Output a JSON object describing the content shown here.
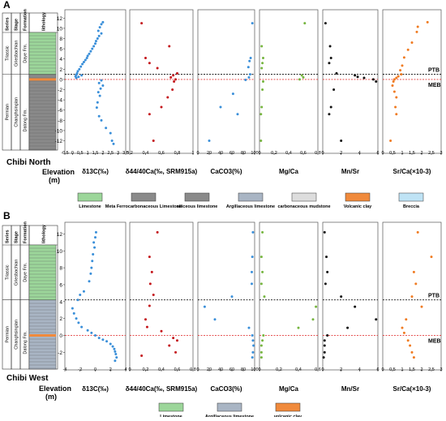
{
  "colors": {
    "blue": "#3a8fd9",
    "red": "#c4171c",
    "green": "#76b53f",
    "black": "#111111",
    "orange": "#f07b22",
    "limestone": "#9cd69a",
    "grey": "#8a8a8a",
    "argillaceous": "#a9b5c4",
    "volcanic": "#f08a3c",
    "breccia": "#bfe3f5",
    "dot_line": "#111111",
    "red_line": "#e33b3b"
  },
  "panels": [
    {
      "label": "A",
      "site": "Chibi North",
      "strat_headers": [
        "Series",
        "Stage",
        "Formation",
        "lithology"
      ],
      "series": [
        "Triassic",
        "Permian"
      ],
      "stages": [
        "Griesbachian",
        "Changhsingian"
      ],
      "formations": [
        "Daye Fm.",
        "Dalong Fm."
      ],
      "yticks": [
        "12",
        "10",
        "8",
        "6",
        "4",
        "2",
        "0",
        "-2",
        "-4",
        "-6",
        "-8",
        "-10",
        "-12"
      ],
      "elevation_label": "Elevation",
      "elevation_unit": "(m)",
      "ptb": "PTB",
      "meb": "MEB",
      "axes": [
        {
          "xlabel": "δ13C(‰)",
          "ticks": [
            "-0.5",
            "0",
            "0.5",
            "1",
            "1.5",
            "2",
            "2.5",
            "3",
            "3.5"
          ]
        },
        {
          "xlabel": "δ44/40Ca(‰, SRM915a)",
          "ticks": [
            "0.2",
            "0.4",
            "0.6",
            "0.8",
            "1"
          ]
        },
        {
          "xlabel": "CaCO3(%)",
          "ticks": [
            "0",
            "20",
            "40",
            "60",
            "80",
            "100"
          ]
        },
        {
          "xlabel": "Mg/Ca",
          "ticks": [
            "0",
            "0.2",
            "0.4",
            "0.6",
            "0.8"
          ]
        },
        {
          "xlabel": "Mn/Sr",
          "ticks": [
            "0",
            "2",
            "4",
            "6"
          ]
        },
        {
          "xlabel": "Sr/Ca(×10-3)",
          "ticks": [
            "0",
            "0.5",
            "1",
            "1.5",
            "2",
            "2.5",
            "3"
          ]
        }
      ],
      "legend": [
        "Limestone",
        "Meta Ferrocarbonaceous Limestone",
        "siliceous limestone",
        "Argillaceous limestone",
        "carbonaceous mudstone",
        "Volcanic clay",
        "Breccia"
      ]
    },
    {
      "label": "B",
      "site": "Chibi West",
      "strat_headers": [
        "Series",
        "Stage",
        "Formation",
        "lithology"
      ],
      "series": [
        "Triassic",
        "Permian"
      ],
      "stages": [
        "Griesbachian",
        "Changhsingian"
      ],
      "formations": [
        "Daye Fm.",
        "Dalong Fm."
      ],
      "yticks": [
        "12",
        "10",
        "8",
        "6",
        "4",
        "2",
        "0",
        "-2"
      ],
      "elevation_label": "Elevation",
      "elevation_unit": "(m)",
      "ptb": "PTB",
      "meb": "MEB",
      "axes": [
        {
          "xlabel": "δ13C(‰)",
          "ticks": [
            "-4",
            "-2",
            "0",
            "2",
            "4"
          ]
        },
        {
          "xlabel": "δ44/40Ca(‰, SRM915a)",
          "ticks": [
            "0",
            "0.2",
            "0.4",
            "0.6",
            "0.8"
          ]
        },
        {
          "xlabel": "CaCO3(%)",
          "ticks": [
            "0",
            "20",
            "40",
            "60",
            "80",
            "100"
          ]
        },
        {
          "xlabel": "Mg/Ca",
          "ticks": [
            "0",
            "0.2",
            "0.4",
            "0.6"
          ]
        },
        {
          "xlabel": "Mn/Sr",
          "ticks": [
            "0",
            "2",
            "4",
            "6"
          ]
        },
        {
          "xlabel": "Sr/Ca(×10-3)",
          "ticks": [
            "0",
            "0.5",
            "1",
            "1.5",
            "2",
            "2.5",
            "3"
          ]
        }
      ],
      "legend": [
        "Limestone",
        "Argillaceous limestone",
        "volcanic clay"
      ]
    }
  ],
  "chart_data": [
    {
      "type": "scatter",
      "title": "",
      "ylabel": "Elevation (m)",
      "ylim": [
        -13.5,
        13
      ],
      "ptb": 1.0,
      "meb": 0.0,
      "series": [
        {
          "name": "δ13C(‰)",
          "xlim": [
            -0.5,
            3.5
          ],
          "color": "blue",
          "x": [
            2.0,
            1.9,
            1.8,
            1.7,
            1.9,
            1.75,
            1.65,
            1.55,
            1.5,
            1.4,
            1.3,
            1.2,
            1.1,
            1.0,
            0.95,
            0.85,
            0.75,
            0.65,
            0.55,
            0.45,
            0.35,
            0.3,
            0.25,
            0.2,
            0.25,
            0.4,
            0.6,
            1.9,
            1.75,
            2.0,
            1.85,
            1.7,
            1.8,
            1.65,
            1.6,
            1.75,
            1.9,
            2.2,
            2.5,
            2.6,
            2.7
          ],
          "y": [
            11.2,
            10.8,
            10.2,
            9.5,
            9.0,
            8.5,
            8.0,
            7.5,
            7.0,
            6.5,
            6.0,
            5.5,
            5.0,
            4.6,
            4.2,
            3.8,
            3.4,
            3.0,
            2.5,
            2.0,
            1.6,
            1.2,
            0.9,
            0.6,
            0.3,
            0.5,
            0.8,
            -0.2,
            -0.7,
            -1.2,
            -1.8,
            -2.5,
            -3.2,
            -4.5,
            -5.5,
            -7.2,
            -8.0,
            -9.5,
            -10.5,
            -12.0,
            -12.6
          ]
        },
        {
          "name": "δ44/40Ca",
          "xlim": [
            0.2,
            1.0
          ],
          "color": "red",
          "x": [
            0.35,
            0.7,
            0.4,
            0.45,
            0.55,
            0.8,
            0.75,
            0.72,
            0.78,
            0.76,
            0.74,
            0.68,
            0.6,
            0.45,
            0.5
          ],
          "y": [
            11.0,
            6.5,
            4.2,
            3.2,
            2.2,
            1.2,
            0.8,
            0.4,
            0.0,
            -0.4,
            -2.0,
            -3.5,
            -5.4,
            -6.8,
            -12.0
          ]
        },
        {
          "name": "CaCO3(%)",
          "xlim": [
            0,
            100
          ],
          "color": "blue",
          "x": [
            96,
            93,
            91,
            89,
            92,
            90,
            84,
            62,
            40,
            70,
            20
          ],
          "y": [
            11.0,
            4.2,
            3.6,
            2.4,
            1.0,
            0.4,
            -0.1,
            -2.8,
            -5.4,
            -6.8,
            -12.0
          ]
        },
        {
          "name": "Mg/Ca",
          "xlim": [
            0,
            0.8
          ],
          "color": "green",
          "x": [
            0.62,
            0.03,
            0.05,
            0.04,
            0.03,
            0.58,
            0.6,
            0.55,
            0.05,
            0.04,
            0.03,
            0.02,
            0.02
          ],
          "y": [
            11.0,
            6.5,
            4.2,
            3.2,
            2.2,
            0.8,
            0.4,
            0.0,
            -0.4,
            -2.0,
            -5.4,
            -6.8,
            -12.0
          ]
        },
        {
          "name": "Mn/Sr",
          "xlim": [
            0,
            6
          ],
          "color": "black",
          "x": [
            0.3,
            0.8,
            0.9,
            0.7,
            1.5,
            3.5,
            3.8,
            4.5,
            5.5,
            5.8,
            1.2,
            0.9,
            0.7,
            2.0
          ],
          "y": [
            11.0,
            6.5,
            4.2,
            3.2,
            1.2,
            0.8,
            0.5,
            0.3,
            0.0,
            -0.4,
            -2.0,
            -5.4,
            -6.8,
            -12.0
          ]
        },
        {
          "name": "Sr/Ca(×10-3)",
          "xlim": [
            0,
            3
          ],
          "color": "orange",
          "x": [
            2.3,
            1.8,
            1.75,
            1.5,
            1.3,
            1.1,
            1.0,
            0.9,
            0.95,
            0.8,
            0.7,
            0.6,
            0.55,
            0.5,
            0.6,
            0.7,
            0.65,
            0.7,
            0.4
          ],
          "y": [
            11.2,
            10.3,
            9.3,
            7.2,
            5.8,
            4.3,
            2.7,
            1.8,
            1.0,
            0.6,
            0.3,
            0.0,
            -0.4,
            -1.2,
            -2.4,
            -3.5,
            -5.4,
            -6.8,
            -12.0
          ]
        }
      ]
    },
    {
      "type": "scatter",
      "title": "",
      "ylabel": "Elevation (m)",
      "ylim": [
        -3.5,
        13
      ],
      "ptb": 4.2,
      "meb": 0.0,
      "series": [
        {
          "name": "δ13C(‰)",
          "xlim": [
            -4,
            4
          ],
          "color": "blue",
          "x": [
            0.1,
            0.0,
            -0.2,
            -0.1,
            -0.3,
            -0.4,
            -0.5,
            -0.6,
            -0.8,
            -1.5,
            -2.0,
            -2.3,
            -3.0,
            -2.8,
            -2.5,
            -2.2,
            -1.8,
            -1.0,
            -0.5,
            0.0,
            0.5,
            1.0,
            1.5,
            2.0,
            2.3,
            2.5,
            2.6,
            2.7,
            2.8,
            2.6
          ],
          "y": [
            12.2,
            11.6,
            11.0,
            10.4,
            9.6,
            8.8,
            8.0,
            7.3,
            6.4,
            5.2,
            4.8,
            4.2,
            3.2,
            2.6,
            2.0,
            1.5,
            1.0,
            0.6,
            0.3,
            0.0,
            -0.3,
            -0.5,
            -0.7,
            -1.0,
            -1.3,
            -1.6,
            -1.9,
            -2.2,
            -2.6,
            -3.0
          ]
        },
        {
          "name": "δ44/40Ca",
          "xlim": [
            0,
            0.8
          ],
          "color": "red",
          "x": [
            0.35,
            0.25,
            0.28,
            0.26,
            0.3,
            0.25,
            0.2,
            0.22,
            0.4,
            0.55,
            0.6,
            0.5,
            0.58,
            0.15
          ],
          "y": [
            12.2,
            9.3,
            7.5,
            6.1,
            4.8,
            3.5,
            1.9,
            1.0,
            0.5,
            -0.3,
            -0.6,
            -1.2,
            -2.0,
            -2.4
          ]
        },
        {
          "name": "CaCO3(%)",
          "xlim": [
            0,
            100
          ],
          "color": "blue",
          "x": [
            97,
            96,
            95,
            95,
            60,
            12,
            30,
            90,
            96,
            97,
            98,
            97,
            96
          ],
          "y": [
            12.2,
            9.3,
            7.5,
            6.1,
            4.6,
            3.4,
            1.9,
            0.9,
            0.0,
            -0.6,
            -1.2,
            -2.0,
            -2.6
          ]
        },
        {
          "name": "Mg/Ca",
          "xlim": [
            0,
            0.6
          ],
          "color": "green",
          "x": [
            0.03,
            0.02,
            0.03,
            0.02,
            0.05,
            0.58,
            0.4,
            0.55,
            0.04,
            0.03,
            0.02,
            0.02,
            0.02
          ],
          "y": [
            12.2,
            9.3,
            7.5,
            6.1,
            4.6,
            3.4,
            0.9,
            1.9,
            0.0,
            -0.6,
            -1.2,
            -2.0,
            -2.6
          ]
        },
        {
          "name": "Mn/Sr",
          "xlim": [
            0,
            6
          ],
          "color": "black",
          "x": [
            0.2,
            0.4,
            0.5,
            0.3,
            2.0,
            3.5,
            5.8,
            2.7,
            0.5,
            0.2,
            0.2,
            0.2,
            0.1
          ],
          "y": [
            12.2,
            9.3,
            7.5,
            6.1,
            4.6,
            3.4,
            1.9,
            0.9,
            0.0,
            -0.6,
            -1.2,
            -2.0,
            -2.6
          ]
        },
        {
          "name": "Sr/Ca(×10-3)",
          "xlim": [
            0,
            3
          ],
          "color": "orange",
          "x": [
            1.8,
            2.5,
            1.6,
            1.7,
            1.5,
            2.0,
            1.2,
            1.0,
            1.1,
            1.3,
            1.4,
            1.5,
            1.6
          ],
          "y": [
            12.2,
            9.3,
            7.5,
            6.1,
            4.6,
            3.4,
            1.9,
            0.9,
            0.3,
            -0.6,
            -1.2,
            -2.0,
            -2.6
          ]
        }
      ]
    }
  ]
}
